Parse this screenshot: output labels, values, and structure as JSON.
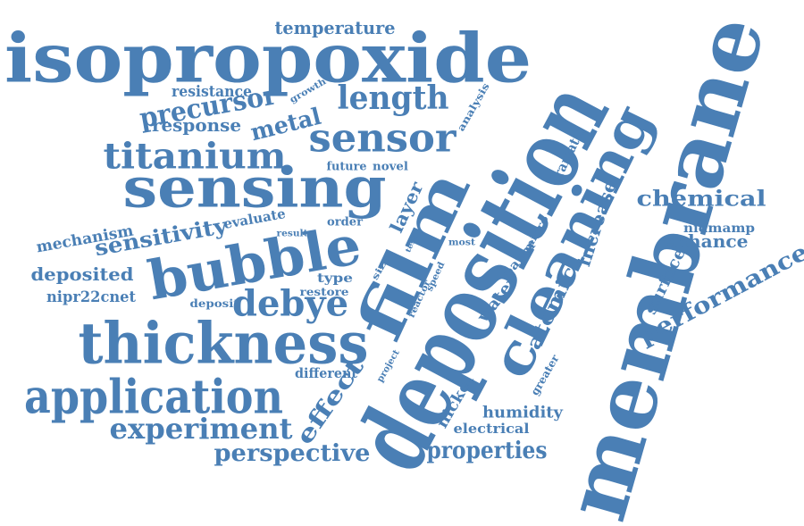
{
  "cloud": {
    "color": "#4a7fb5",
    "words": [
      "isopropoxide",
      "deposition",
      "membrane",
      "cleaning",
      "film",
      "sensing",
      "thickness",
      "bubble",
      "application",
      "sensor",
      "titanium",
      "experiment",
      "debye",
      "length",
      "precursor",
      "perspective",
      "properties",
      "performance",
      "sensitivity",
      "chemical",
      "temperature",
      "effect",
      "atomic",
      "deposited",
      "metal",
      "response",
      "resistance",
      "increase",
      "enhance",
      "humidity",
      "mechanism",
      "surface",
      "water",
      "layer",
      "nickel",
      "electrical",
      "evaluate",
      "future",
      "novel",
      "different",
      "dramatic",
      "nidmamp",
      "nipr22cnet",
      "growth",
      "analysis",
      "order",
      "type",
      "restore",
      "deposit",
      "micro",
      "paper",
      "greater",
      "project",
      "reactor",
      "speed",
      "result",
      "most",
      "size",
      "test"
    ]
  }
}
